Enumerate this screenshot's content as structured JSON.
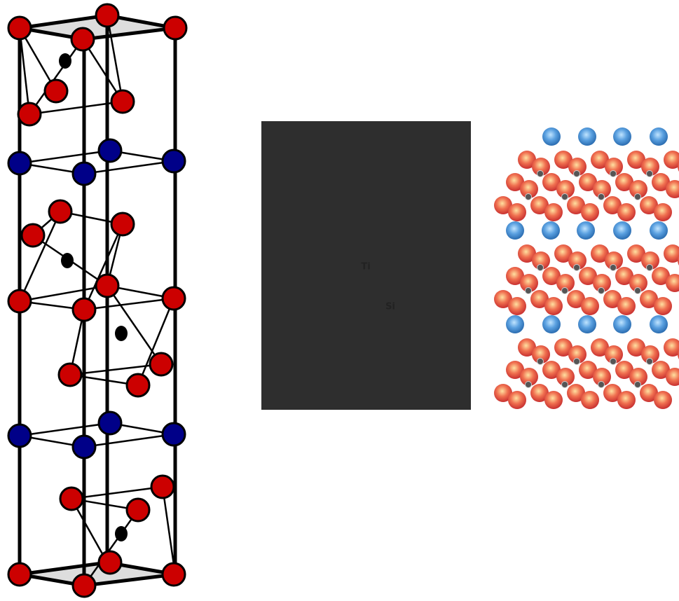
{
  "stem_image": {
    "labels": [
      "Ti",
      "Si"
    ]
  }
}
